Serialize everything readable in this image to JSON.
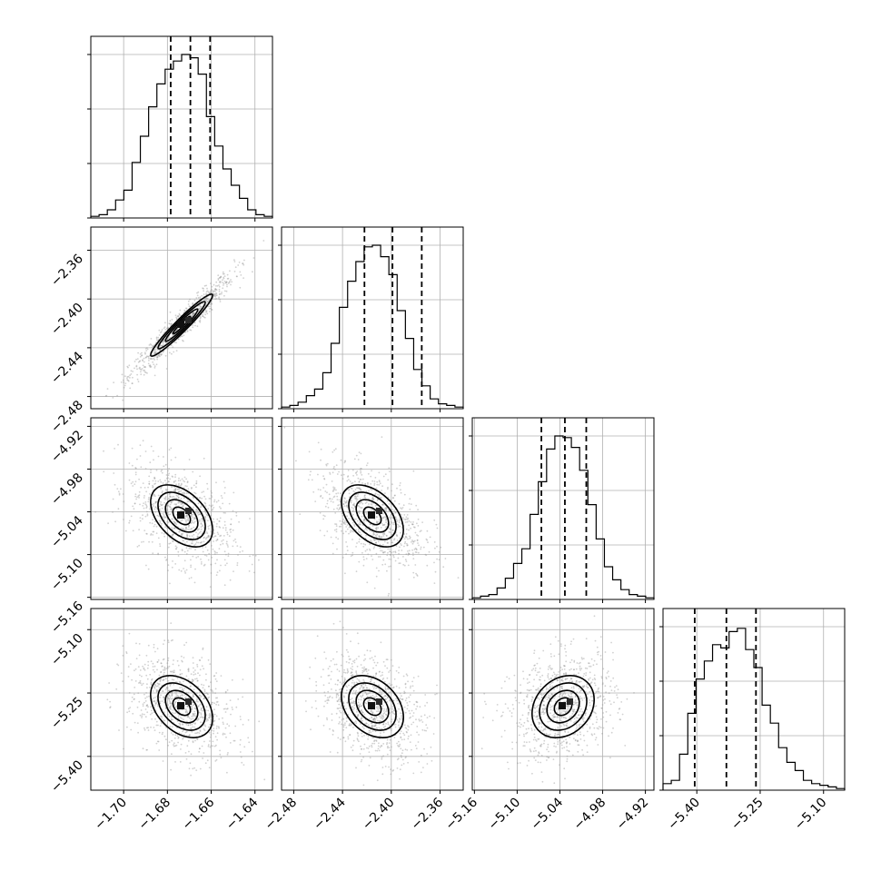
{
  "chart_data": {
    "type": "corner",
    "grid": true,
    "parameters": [
      {
        "range": [
          -1.715,
          -1.632
        ],
        "ticks": [
          "−1.70",
          "−1.68",
          "−1.66",
          "−1.64"
        ],
        "tick_values": [
          -1.7,
          -1.68,
          -1.66,
          -1.64
        ],
        "quantiles": [
          -1.6785,
          -1.6695,
          -1.6605
        ]
      },
      {
        "range": [
          -2.49,
          -2.341
        ],
        "ticks": [
          "−2.48",
          "−2.44",
          "−2.40",
          "−2.36"
        ],
        "tick_values": [
          -2.48,
          -2.44,
          -2.4,
          -2.36
        ],
        "quantiles": [
          -2.422,
          -2.399,
          -2.375
        ]
      },
      {
        "range": [
          -5.163,
          -4.908
        ],
        "ticks": [
          "−5.16",
          "−5.10",
          "−5.04",
          "−4.98",
          "−4.92"
        ],
        "tick_values": [
          -5.16,
          -5.1,
          -5.04,
          -4.98,
          -4.92
        ],
        "quantiles": [
          -5.066,
          -5.033,
          -5.003
        ]
      },
      {
        "range": [
          -5.48,
          -5.05
        ],
        "ticks": [
          "−5.40",
          "−5.25",
          "−5.10"
        ],
        "tick_values": [
          -5.4,
          -5.25,
          -5.1
        ],
        "quantiles": [
          -5.405,
          -5.33,
          -5.26
        ]
      }
    ],
    "histograms": [
      [
        0.01,
        0.02,
        0.05,
        0.11,
        0.17,
        0.34,
        0.5,
        0.68,
        0.82,
        0.91,
        0.96,
        1.0,
        0.98,
        0.88,
        0.62,
        0.44,
        0.3,
        0.2,
        0.12,
        0.05,
        0.02,
        0.01
      ],
      [
        0.01,
        0.02,
        0.04,
        0.08,
        0.12,
        0.22,
        0.4,
        0.62,
        0.78,
        0.9,
        0.99,
        1.0,
        0.93,
        0.82,
        0.6,
        0.43,
        0.24,
        0.14,
        0.06,
        0.03,
        0.02,
        0.01
      ],
      [
        0.01,
        0.02,
        0.03,
        0.07,
        0.13,
        0.22,
        0.31,
        0.52,
        0.72,
        0.92,
        1.0,
        0.99,
        0.93,
        0.79,
        0.58,
        0.37,
        0.2,
        0.12,
        0.06,
        0.03,
        0.02,
        0.01
      ],
      [
        0.04,
        0.06,
        0.22,
        0.47,
        0.68,
        0.79,
        0.89,
        0.87,
        0.97,
        0.99,
        0.86,
        0.75,
        0.52,
        0.41,
        0.26,
        0.17,
        0.12,
        0.06,
        0.04,
        0.03,
        0.02,
        0.01
      ]
    ],
    "correlations": [
      [
        0,
        0,
        0,
        0
      ],
      [
        0.96,
        0,
        0,
        0
      ],
      [
        -0.45,
        -0.45,
        0,
        0
      ],
      [
        -0.38,
        -0.33,
        0.22,
        0
      ]
    ],
    "contour_levels": [
      0.5,
      1.0,
      1.5,
      2.0
    ]
  }
}
